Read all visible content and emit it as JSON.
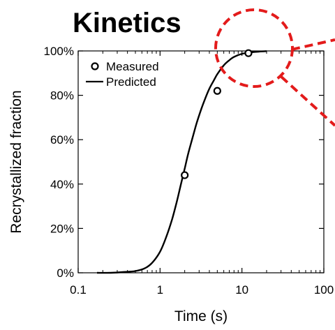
{
  "chart_data": {
    "type": "line",
    "title": "Kinetics",
    "xlabel": "Time (s)",
    "ylabel": "Recrystallized fraction",
    "x_scale": "log",
    "xlim": [
      0.1,
      100
    ],
    "ylim": [
      0,
      100
    ],
    "x_tick_labels": [
      "0.1",
      "1",
      "10",
      "100"
    ],
    "x_ticks": [
      0.1,
      1,
      10,
      100
    ],
    "y_tick_labels": [
      "0%",
      "20%",
      "40%",
      "60%",
      "80%",
      "100%"
    ],
    "y_ticks": [
      0,
      20,
      40,
      60,
      80,
      100
    ],
    "grid": false,
    "legend_position": "top-left",
    "series": [
      {
        "name": "Measured",
        "kind": "scatter",
        "marker": "open-circle",
        "color": "#000000",
        "x": [
          2,
          5,
          12
        ],
        "y": [
          44,
          82,
          99
        ]
      },
      {
        "name": "Predicted",
        "kind": "line",
        "color": "#000000",
        "x": [
          0.17,
          0.25,
          0.35,
          0.5,
          0.65,
          0.8,
          1.0,
          1.2,
          1.4,
          1.6,
          1.8,
          2.0,
          2.2,
          2.5,
          2.8,
          3.2,
          3.6,
          4.0,
          4.5,
          5.0,
          6.0,
          7.0,
          8.0,
          10.0,
          13.0,
          16.0,
          20.0
        ],
        "y": [
          0,
          0,
          0.3,
          0.8,
          2.0,
          4.5,
          9.5,
          16.5,
          24.0,
          32.0,
          40.0,
          47.0,
          53.5,
          61.0,
          67.5,
          74.0,
          79.0,
          83.0,
          86.5,
          89.5,
          93.5,
          95.8,
          97.3,
          98.7,
          99.4,
          99.7,
          99.9
        ]
      }
    ],
    "annotations": {
      "highlight_color": "#e31b1b"
    }
  }
}
